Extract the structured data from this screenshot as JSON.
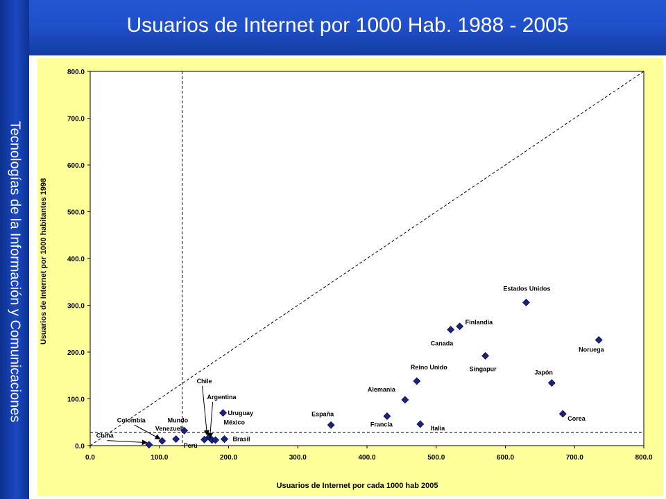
{
  "header": {
    "title": "Usuarios de Internet por 1000 Hab. 1988 - 2005"
  },
  "sidebar": {
    "text": "Tecnologías de la Información y Comunicaciones"
  },
  "colors": {
    "header": "#1f4fc9",
    "sidebar": "#1c48c0",
    "plot_area": "#ffff99",
    "marker": "#1a237e"
  },
  "chart_data": {
    "type": "scatter",
    "xlabel": "Usuarios de Internet por cada 1000 hab 2005",
    "ylabel": "Usuarios de Internet por 1000 habitantes 1998",
    "xlim": [
      0,
      800
    ],
    "ylim": [
      0,
      800
    ],
    "x_ticks": [
      "0.0",
      "100.0",
      "200.0",
      "300.0",
      "400.0",
      "500.0",
      "600.0",
      "700.0",
      "800.0"
    ],
    "y_ticks": [
      "0.0",
      "100.0",
      "200.0",
      "300.0",
      "400.0",
      "500.0",
      "600.0",
      "700.0",
      "800.0"
    ],
    "grid": false,
    "reference_lines": [
      {
        "kind": "diagonal",
        "from": [
          0,
          0
        ],
        "to": [
          800,
          800
        ],
        "style": "dashed"
      },
      {
        "kind": "vertical",
        "x": 133,
        "style": "dashed"
      },
      {
        "kind": "horizontal",
        "y": 28,
        "style": "dashed"
      }
    ],
    "points": [
      {
        "label": "China",
        "x": 85,
        "y": 2
      },
      {
        "label": "Colombia",
        "x": 104,
        "y": 10
      },
      {
        "label": "Venezuela",
        "x": 124,
        "y": 14
      },
      {
        "label": "Mundo",
        "x": 136,
        "y": 32
      },
      {
        "label": "Perú",
        "x": 165,
        "y": 13
      },
      {
        "label": "Chile",
        "x": 172,
        "y": 18
      },
      {
        "label": "Argentina",
        "x": 176,
        "y": 12
      },
      {
        "label": "",
        "x": 181,
        "y": 12
      },
      {
        "label": "Uruguay",
        "x": 192,
        "y": 70
      },
      {
        "label": "México",
        "x": 194,
        "y": 14
      },
      {
        "label": "Brasil",
        "x": 194,
        "y": 14
      },
      {
        "label": "España",
        "x": 348,
        "y": 44
      },
      {
        "label": "Francia",
        "x": 429,
        "y": 63
      },
      {
        "label": "Alemania",
        "x": 455,
        "y": 98
      },
      {
        "label": "Reino Unido",
        "x": 472,
        "y": 138
      },
      {
        "label": "Italia",
        "x": 477,
        "y": 46
      },
      {
        "label": "Canada",
        "x": 521,
        "y": 248
      },
      {
        "label": "Finlandia",
        "x": 534,
        "y": 255
      },
      {
        "label": "Singapur",
        "x": 571,
        "y": 192
      },
      {
        "label": "Estados Unidos",
        "x": 630,
        "y": 306
      },
      {
        "label": "Japón",
        "x": 667,
        "y": 134
      },
      {
        "label": "Corea",
        "x": 683,
        "y": 68
      },
      {
        "label": "Noruega",
        "x": 735,
        "y": 226
      }
    ]
  }
}
